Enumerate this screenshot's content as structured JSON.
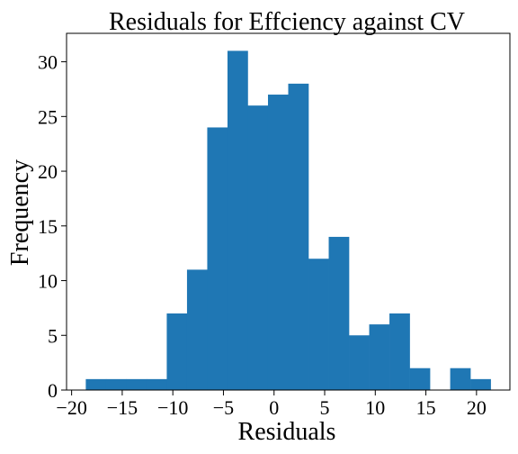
{
  "chart_data": {
    "type": "histogram",
    "title": "Residuals for Effciency against CV",
    "xlabel": "Residuals",
    "ylabel": "Frequency",
    "xlim": [
      -20.5,
      23.3
    ],
    "ylim": [
      0,
      32.6
    ],
    "x_ticks": [
      -20,
      -15,
      -10,
      -5,
      0,
      5,
      10,
      15,
      20
    ],
    "x_tick_labels": [
      "−20",
      "−15",
      "−10",
      "−5",
      "0",
      "5",
      "10",
      "15",
      "20"
    ],
    "y_ticks": [
      0,
      5,
      10,
      15,
      20,
      25,
      30
    ],
    "y_tick_labels": [
      "0",
      "5",
      "10",
      "15",
      "20",
      "25",
      "30"
    ],
    "bin_start": -18.6,
    "bin_width": 2.0,
    "counts": [
      1,
      1,
      1,
      1,
      7,
      11,
      24,
      31,
      26,
      27,
      28,
      12,
      14,
      5,
      6,
      7,
      2,
      0,
      2,
      1
    ],
    "bar_color": "#1f77b4",
    "grid": false,
    "legend": "none"
  }
}
